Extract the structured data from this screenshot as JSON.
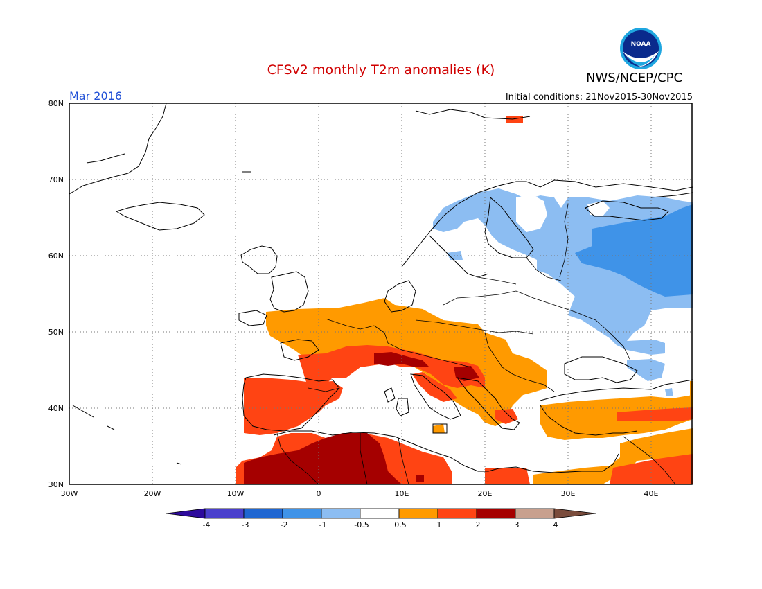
{
  "title": "CFSv2 monthly T2m anomalies (K)",
  "agency": "NWS/NCEP/CPC",
  "logo_text": "NOAA",
  "valid_month": "Mar 2016",
  "initial_conditions": "Initial conditions: 21Nov2015-30Nov2015",
  "lat_labels": [
    "80N",
    "70N",
    "60N",
    "50N",
    "40N",
    "30N"
  ],
  "lon_labels": [
    "30W",
    "20W",
    "10W",
    "0",
    "10E",
    "20E",
    "30E",
    "40E"
  ],
  "colorbar": {
    "tick_labels": [
      "-4",
      "-3",
      "-2",
      "-1",
      "-0.5",
      "0.5",
      "1",
      "2",
      "3",
      "4"
    ],
    "colors": [
      "#2d0a9c",
      "#4a3fcc",
      "#1f66d1",
      "#3f93e8",
      "#8cbdf2",
      "#ffffff",
      "#ff9a00",
      "#ff4413",
      "#a50000",
      "#c8a08e",
      "#7a4c3c"
    ]
  },
  "colors": {
    "warm_05_1": "#ff9a00",
    "warm_1_2": "#ff4413",
    "warm_2_3": "#a50000",
    "cold_05_1": "#8cbdf2",
    "cold_1_2": "#3f93e8",
    "title": "#d00000",
    "month": "#1f4fd6"
  }
}
